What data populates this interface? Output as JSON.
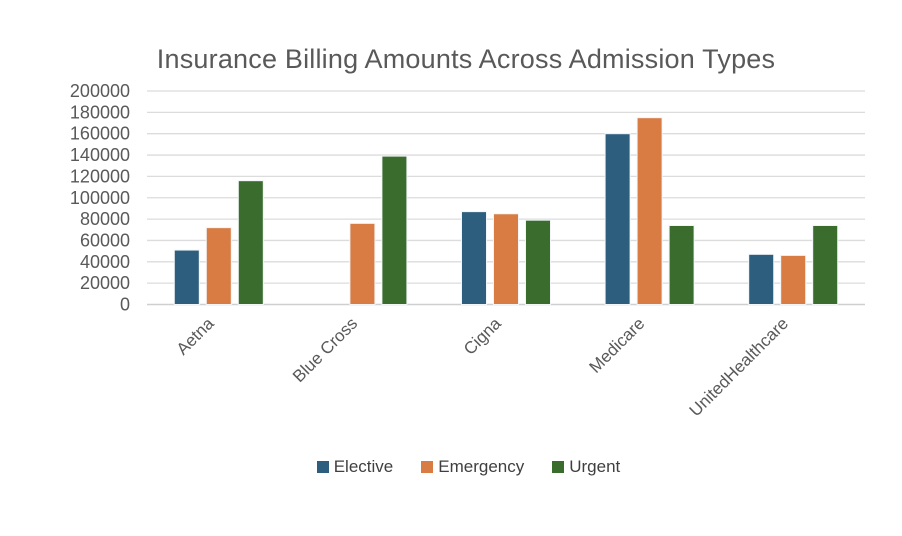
{
  "chart_data": {
    "type": "bar",
    "title": "Insurance Billing Amounts Across Admission Types",
    "categories": [
      "Aetna",
      "Blue Cross",
      "Cigna",
      "Medicare",
      "UnitedHealthcare"
    ],
    "series": [
      {
        "name": "Elective",
        "color": "#2E5E7D",
        "values": [
          51000,
          null,
          87000,
          160000,
          47000
        ]
      },
      {
        "name": "Emergency",
        "color": "#D87C44",
        "values": [
          72000,
          76000,
          85000,
          175000,
          46000
        ]
      },
      {
        "name": "Urgent",
        "color": "#3A6C2E",
        "values": [
          116000,
          139000,
          79000,
          74000,
          74000
        ]
      }
    ],
    "ylim": [
      0,
      200000
    ],
    "yticks": [
      0,
      20000,
      40000,
      60000,
      80000,
      100000,
      120000,
      140000,
      160000,
      180000,
      200000
    ],
    "grid": "horizontal",
    "legend_position": "bottom",
    "legend_entries": [
      "Elective",
      "Emergency",
      "Urgent"
    ]
  },
  "colors": {
    "title_text": "#595959",
    "tick_text": "#595959",
    "legend_text": "#3F3F3F",
    "gridline": "#DCDCDC",
    "axis_line": "#CFCFCF",
    "background": "#FFFFFF"
  }
}
